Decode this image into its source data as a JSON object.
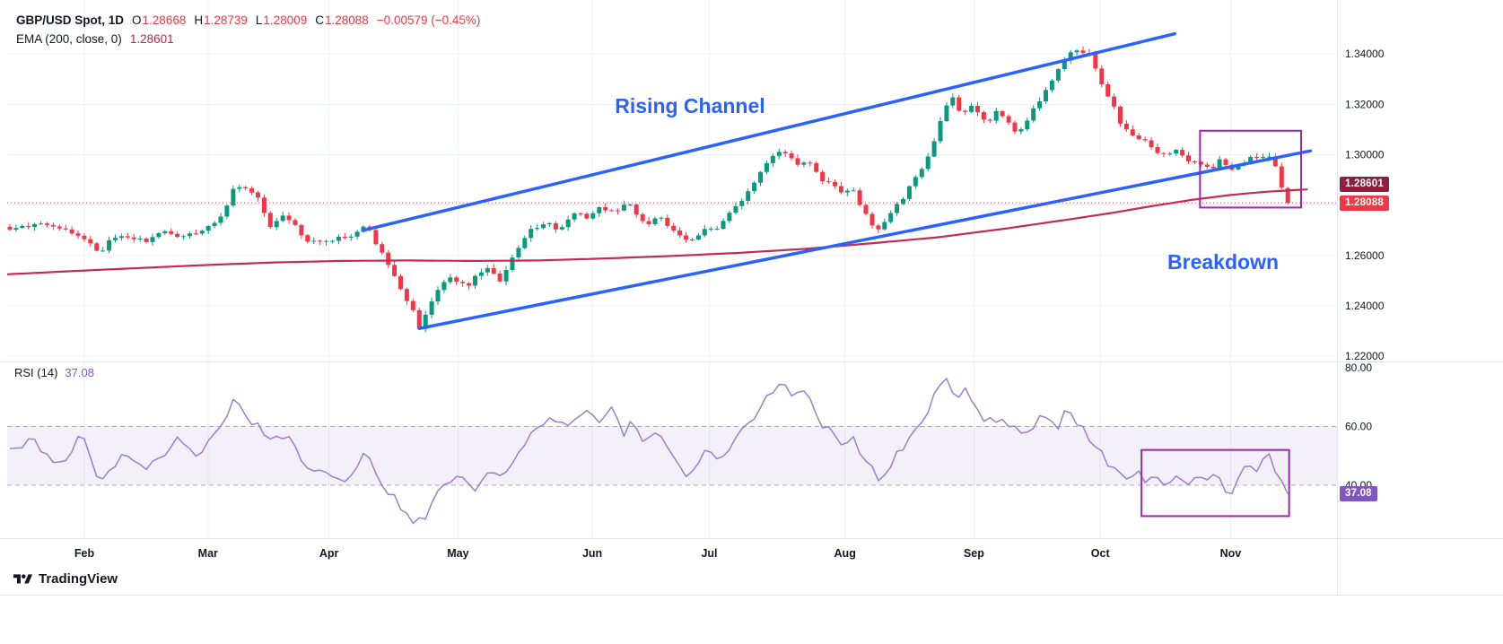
{
  "header": {
    "symbol": "GBP/USD Spot, 1D",
    "ohlc_fields": [
      [
        "O",
        "1.28668"
      ],
      [
        "H",
        "1.28739"
      ],
      [
        "L",
        "1.28009"
      ],
      [
        "C",
        "1.28088"
      ]
    ],
    "change": "−0.00579 (−0.45%)",
    "ema_label": "EMA (200, close, 0)",
    "ema_value": "1.28601"
  },
  "rsi_legend": {
    "label": "RSI (14)",
    "value": "37.08"
  },
  "badges": {
    "ema": "1.28601",
    "close": "1.28088",
    "rsi": "37.08"
  },
  "branding": {
    "label": "TradingView"
  },
  "annotations": {
    "rising_channel": {
      "text": "Rising Channel",
      "f": 0.457,
      "price": 1.3165
    },
    "breakdown": {
      "text": "Breakdown",
      "f": 0.8725,
      "price": 1.2545
    }
  },
  "colors": {
    "up": "#089981",
    "down": "#f23645",
    "ema_line": "#c32b52",
    "ema_badge": "#8f1f3e",
    "rsi_line": "#9b7dd2",
    "rsi_band": "rgba(126,87,194,0.09)",
    "blue": "#2962ff",
    "box": "#9c27b0",
    "grid": "#eef1f6",
    "sep": "#e0e3eb",
    "dashed": "#95989f",
    "text": "#131722"
  },
  "chart_data": {
    "type": "candlestick",
    "title": "GBP/USD Spot, 1D with EMA(200) and RSI(14)",
    "symbol": "GBP/USD",
    "timeframe": "1D",
    "last_candle": {
      "open": 1.28668,
      "high": 1.28739,
      "low": 1.28009,
      "close": 1.28088
    },
    "change": -0.00579,
    "change_pct": -0.45,
    "ema_200": 1.28601,
    "rsi_14": 37.08,
    "price_axis": {
      "max": 1.3614,
      "min": 1.2179,
      "ticks": [
        {
          "v": 1.34,
          "label": "1.34000"
        },
        {
          "v": 1.32,
          "label": "1.32000"
        },
        {
          "v": 1.3,
          "label": "1.30000"
        },
        {
          "v": 1.26,
          "label": "1.26000"
        },
        {
          "v": 1.24,
          "label": "1.24000"
        },
        {
          "v": 1.22,
          "label": "1.22000"
        }
      ]
    },
    "grid_prices": [
      1.34,
      1.32,
      1.3,
      1.28,
      1.26,
      1.24,
      1.22
    ],
    "rsi_axis": {
      "max": 82.1,
      "min": 22.0,
      "ticks": [
        {
          "v": 80,
          "label": "80.00"
        },
        {
          "v": 60,
          "label": "60.00"
        },
        {
          "v": 40,
          "label": "40.00"
        }
      ]
    },
    "rsi_band": {
      "upper": 60,
      "lower": 40
    },
    "months": [
      {
        "label": "Feb",
        "f": 0.058
      },
      {
        "label": "Mar",
        "f": 0.151
      },
      {
        "label": "Apr",
        "f": 0.242
      },
      {
        "label": "May",
        "f": 0.339
      },
      {
        "label": "Jun",
        "f": 0.44
      },
      {
        "label": "Jul",
        "f": 0.528
      },
      {
        "label": "Aug",
        "f": 0.63
      },
      {
        "label": "Sep",
        "f": 0.727
      },
      {
        "label": "Oct",
        "f": 0.822
      },
      {
        "label": "Nov",
        "f": 0.92
      }
    ],
    "candles": {
      "count": 207,
      "f_start": 0.002,
      "f_end": 0.963,
      "seed": 11
    },
    "price_path": [
      [
        0.001,
        1.27
      ],
      [
        0.022,
        1.2725
      ],
      [
        0.042,
        1.2712
      ],
      [
        0.059,
        1.2658
      ],
      [
        0.069,
        1.2612
      ],
      [
        0.082,
        1.268
      ],
      [
        0.103,
        1.2655
      ],
      [
        0.118,
        1.27
      ],
      [
        0.13,
        1.2672
      ],
      [
        0.143,
        1.269
      ],
      [
        0.15,
        1.271
      ],
      [
        0.16,
        1.2745
      ],
      [
        0.172,
        1.2885
      ],
      [
        0.18,
        1.286
      ],
      [
        0.19,
        1.282
      ],
      [
        0.197,
        1.271
      ],
      [
        0.209,
        1.277
      ],
      [
        0.227,
        1.2645
      ],
      [
        0.244,
        1.266
      ],
      [
        0.261,
        1.268
      ],
      [
        0.27,
        1.272
      ],
      [
        0.285,
        1.258
      ],
      [
        0.295,
        1.248
      ],
      [
        0.304,
        1.239
      ],
      [
        0.31,
        1.231
      ],
      [
        0.318,
        1.24
      ],
      [
        0.325,
        1.248
      ],
      [
        0.335,
        1.252
      ],
      [
        0.346,
        1.2465
      ],
      [
        0.359,
        1.256
      ],
      [
        0.371,
        1.2505
      ],
      [
        0.383,
        1.262
      ],
      [
        0.393,
        1.27
      ],
      [
        0.406,
        1.273
      ],
      [
        0.416,
        1.2705
      ],
      [
        0.426,
        1.277
      ],
      [
        0.437,
        1.2745
      ],
      [
        0.445,
        1.28
      ],
      [
        0.457,
        1.2765
      ],
      [
        0.467,
        1.281
      ],
      [
        0.48,
        1.2725
      ],
      [
        0.492,
        1.2745
      ],
      [
        0.504,
        1.2685
      ],
      [
        0.514,
        1.2645
      ],
      [
        0.526,
        1.272
      ],
      [
        0.534,
        1.2705
      ],
      [
        0.545,
        1.278
      ],
      [
        0.555,
        1.284
      ],
      [
        0.565,
        1.292
      ],
      [
        0.573,
        1.298
      ],
      [
        0.583,
        1.302
      ],
      [
        0.594,
        1.296
      ],
      [
        0.602,
        1.2985
      ],
      [
        0.612,
        1.2905
      ],
      [
        0.621,
        1.288
      ],
      [
        0.629,
        1.284
      ],
      [
        0.636,
        1.2862
      ],
      [
        0.644,
        1.278
      ],
      [
        0.65,
        1.272
      ],
      [
        0.656,
        1.27
      ],
      [
        0.664,
        1.2762
      ],
      [
        0.673,
        1.282
      ],
      [
        0.681,
        1.29
      ],
      [
        0.69,
        1.296
      ],
      [
        0.698,
        1.306
      ],
      [
        0.704,
        1.318
      ],
      [
        0.71,
        1.324
      ],
      [
        0.718,
        1.315
      ],
      [
        0.723,
        1.32
      ],
      [
        0.73,
        1.316
      ],
      [
        0.737,
        1.312
      ],
      [
        0.745,
        1.318
      ],
      [
        0.754,
        1.312
      ],
      [
        0.76,
        1.308
      ],
      [
        0.769,
        1.316
      ],
      [
        0.777,
        1.322
      ],
      [
        0.785,
        1.33
      ],
      [
        0.794,
        1.336
      ],
      [
        0.802,
        1.343
      ],
      [
        0.808,
        1.34
      ],
      [
        0.812,
        1.342
      ],
      [
        0.821,
        1.33
      ],
      [
        0.83,
        1.322
      ],
      [
        0.838,
        1.312
      ],
      [
        0.846,
        1.308
      ],
      [
        0.855,
        1.306
      ],
      [
        0.864,
        1.302
      ],
      [
        0.872,
        1.3
      ],
      [
        0.88,
        1.302
      ],
      [
        0.889,
        1.298
      ],
      [
        0.897,
        1.296
      ],
      [
        0.906,
        1.294
      ],
      [
        0.912,
        1.298
      ],
      [
        0.92,
        1.294
      ],
      [
        0.929,
        1.296
      ],
      [
        0.936,
        1.3
      ],
      [
        0.943,
        1.298
      ],
      [
        0.947,
        1.301
      ],
      [
        0.953,
        1.296
      ],
      [
        0.958,
        1.288
      ],
      [
        0.963,
        1.2809
      ]
    ],
    "ema_path": [
      [
        0.0,
        1.2525
      ],
      [
        0.05,
        1.2538
      ],
      [
        0.1,
        1.255
      ],
      [
        0.15,
        1.2562
      ],
      [
        0.2,
        1.2572
      ],
      [
        0.25,
        1.2578
      ],
      [
        0.3,
        1.258
      ],
      [
        0.35,
        1.2578
      ],
      [
        0.4,
        1.258
      ],
      [
        0.45,
        1.2588
      ],
      [
        0.5,
        1.2598
      ],
      [
        0.55,
        1.261
      ],
      [
        0.6,
        1.2626
      ],
      [
        0.65,
        1.2648
      ],
      [
        0.7,
        1.2672
      ],
      [
        0.75,
        1.2706
      ],
      [
        0.8,
        1.2744
      ],
      [
        0.83,
        1.2768
      ],
      [
        0.86,
        1.2795
      ],
      [
        0.89,
        1.282
      ],
      [
        0.92,
        1.284
      ],
      [
        0.945,
        1.2852
      ],
      [
        0.963,
        1.2858
      ],
      [
        0.978,
        1.2862
      ]
    ],
    "rsi_path": [
      [
        0.001,
        52
      ],
      [
        0.02,
        55
      ],
      [
        0.04,
        47
      ],
      [
        0.055,
        57
      ],
      [
        0.069,
        42
      ],
      [
        0.085,
        50
      ],
      [
        0.1,
        46
      ],
      [
        0.115,
        50
      ],
      [
        0.13,
        55
      ],
      [
        0.143,
        50
      ],
      [
        0.155,
        56
      ],
      [
        0.165,
        62
      ],
      [
        0.172,
        70
      ],
      [
        0.185,
        61
      ],
      [
        0.197,
        55
      ],
      [
        0.209,
        58
      ],
      [
        0.227,
        45
      ],
      [
        0.244,
        44
      ],
      [
        0.255,
        41
      ],
      [
        0.262,
        47
      ],
      [
        0.27,
        52
      ],
      [
        0.285,
        38
      ],
      [
        0.295,
        33
      ],
      [
        0.305,
        29
      ],
      [
        0.312,
        28
      ],
      [
        0.322,
        36
      ],
      [
        0.332,
        41
      ],
      [
        0.342,
        44
      ],
      [
        0.352,
        38
      ],
      [
        0.362,
        46
      ],
      [
        0.372,
        41
      ],
      [
        0.383,
        50
      ],
      [
        0.393,
        56
      ],
      [
        0.405,
        61
      ],
      [
        0.415,
        63
      ],
      [
        0.425,
        60
      ],
      [
        0.435,
        65
      ],
      [
        0.445,
        61
      ],
      [
        0.455,
        65
      ],
      [
        0.465,
        57
      ],
      [
        0.472,
        62
      ],
      [
        0.48,
        54
      ],
      [
        0.49,
        57
      ],
      [
        0.5,
        49
      ],
      [
        0.512,
        44
      ],
      [
        0.525,
        52
      ],
      [
        0.535,
        47
      ],
      [
        0.545,
        55
      ],
      [
        0.555,
        60
      ],
      [
        0.565,
        66
      ],
      [
        0.575,
        72
      ],
      [
        0.583,
        75
      ],
      [
        0.592,
        69
      ],
      [
        0.6,
        72
      ],
      [
        0.612,
        61
      ],
      [
        0.62,
        57
      ],
      [
        0.63,
        54
      ],
      [
        0.637,
        57
      ],
      [
        0.645,
        49
      ],
      [
        0.652,
        44
      ],
      [
        0.658,
        41
      ],
      [
        0.667,
        50
      ],
      [
        0.675,
        55
      ],
      [
        0.683,
        60
      ],
      [
        0.692,
        65
      ],
      [
        0.7,
        72
      ],
      [
        0.706,
        76
      ],
      [
        0.714,
        69
      ],
      [
        0.72,
        72
      ],
      [
        0.73,
        65
      ],
      [
        0.74,
        61
      ],
      [
        0.748,
        64
      ],
      [
        0.756,
        59
      ],
      [
        0.764,
        56
      ],
      [
        0.772,
        61
      ],
      [
        0.78,
        64
      ],
      [
        0.79,
        61
      ],
      [
        0.797,
        65
      ],
      [
        0.805,
        61
      ],
      [
        0.815,
        55
      ],
      [
        0.825,
        50
      ],
      [
        0.835,
        45
      ],
      [
        0.843,
        42
      ],
      [
        0.85,
        44
      ],
      [
        0.858,
        41
      ],
      [
        0.865,
        43
      ],
      [
        0.872,
        40
      ],
      [
        0.88,
        43
      ],
      [
        0.888,
        40
      ],
      [
        0.895,
        45
      ],
      [
        0.902,
        42
      ],
      [
        0.908,
        44
      ],
      [
        0.915,
        40
      ],
      [
        0.92,
        37
      ],
      [
        0.928,
        43
      ],
      [
        0.935,
        47
      ],
      [
        0.94,
        44
      ],
      [
        0.947,
        52
      ],
      [
        0.953,
        45
      ],
      [
        0.958,
        41
      ],
      [
        0.963,
        37.08
      ]
    ],
    "channel": {
      "upper": {
        "f1": 0.268,
        "p1": 1.27,
        "f2": 0.878,
        "p2": 1.348
      },
      "lower": {
        "f1": 0.31,
        "p1": 1.231,
        "f2": 0.98,
        "p2": 1.3015
      }
    },
    "boxes": {
      "price": {
        "f1": 0.897,
        "p1": 1.3095,
        "f2": 0.973,
        "p2": 1.279
      },
      "rsi": {
        "f1": 0.853,
        "v1": 52,
        "f2": 0.964,
        "v2": 29.5
      }
    }
  }
}
